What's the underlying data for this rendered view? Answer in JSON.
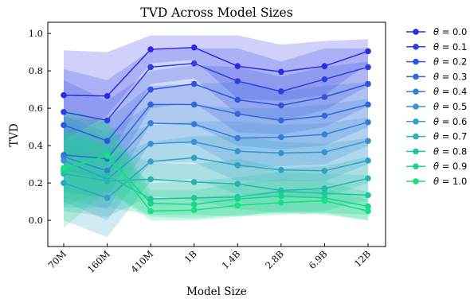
{
  "chart_data": {
    "type": "line",
    "title": "TVD Across Model Sizes",
    "xlabel": "Model Size",
    "ylabel": "TVD",
    "categories": [
      "70M",
      "160M",
      "410M",
      "1B",
      "1.4B",
      "2.8B",
      "6.9B",
      "12B"
    ],
    "ylim": [
      -0.14,
      1.06
    ],
    "yticks": [
      0.0,
      0.2,
      0.4,
      0.6,
      0.8,
      1.0
    ],
    "ytick_labels": [
      "0.0",
      "0.2",
      "0.4",
      "0.6",
      "0.8",
      "1.0"
    ],
    "grid": false,
    "legend_position": "outside-right",
    "band_opacity": 0.22,
    "series": [
      {
        "name": "θ = 0.0",
        "legend_var": "θ",
        "legend_val": "0.0",
        "color": "#2b2be6",
        "values": [
          0.67,
          0.665,
          0.915,
          0.925,
          0.825,
          0.795,
          0.825,
          0.905
        ],
        "lower": [
          0.43,
          0.56,
          0.84,
          0.86,
          0.65,
          0.64,
          0.67,
          0.84
        ],
        "upper": [
          0.91,
          0.9,
          0.99,
          0.99,
          0.99,
          0.94,
          0.96,
          0.97
        ]
      },
      {
        "name": "θ = 0.1",
        "legend_var": "θ",
        "legend_val": "0.1",
        "color": "#2d3fe3",
        "values": [
          0.58,
          0.535,
          0.82,
          0.84,
          0.745,
          0.69,
          0.755,
          0.82
        ],
        "lower": [
          0.35,
          0.32,
          0.73,
          0.76,
          0.57,
          0.53,
          0.59,
          0.72
        ],
        "upper": [
          0.81,
          0.75,
          0.91,
          0.92,
          0.92,
          0.85,
          0.92,
          0.92
        ]
      },
      {
        "name": "θ = 0.2",
        "legend_var": "θ",
        "legend_val": "0.2",
        "color": "#2f54e0",
        "values": [
          0.51,
          0.425,
          0.7,
          0.73,
          0.645,
          0.615,
          0.66,
          0.73
        ],
        "lower": [
          0.27,
          0.21,
          0.6,
          0.63,
          0.47,
          0.46,
          0.5,
          0.61
        ],
        "upper": [
          0.75,
          0.64,
          0.8,
          0.83,
          0.82,
          0.77,
          0.82,
          0.85
        ]
      },
      {
        "name": "θ = 0.3",
        "legend_var": "θ",
        "legend_val": "0.3",
        "color": "#3169dd",
        "values": [
          0.35,
          0.33,
          0.62,
          0.62,
          0.57,
          0.535,
          0.56,
          0.62
        ],
        "lower": [
          0.15,
          0.12,
          0.52,
          0.51,
          0.4,
          0.38,
          0.4,
          0.5
        ],
        "upper": [
          0.55,
          0.54,
          0.72,
          0.73,
          0.74,
          0.69,
          0.72,
          0.74
        ]
      },
      {
        "name": "θ = 0.4",
        "legend_var": "θ",
        "legend_val": "0.4",
        "color": "#337ed9",
        "values": [
          0.34,
          0.265,
          0.52,
          0.515,
          0.44,
          0.445,
          0.46,
          0.525
        ],
        "lower": [
          0.12,
          0.06,
          0.42,
          0.41,
          0.28,
          0.29,
          0.3,
          0.4
        ],
        "upper": [
          0.56,
          0.47,
          0.62,
          0.62,
          0.6,
          0.6,
          0.62,
          0.65
        ]
      },
      {
        "name": "θ = 0.5",
        "legend_var": "θ",
        "legend_val": "0.5",
        "color": "#3593d5",
        "values": [
          0.32,
          0.22,
          0.41,
          0.42,
          0.37,
          0.36,
          0.365,
          0.425
        ],
        "lower": [
          0.1,
          0.0,
          0.31,
          0.31,
          0.21,
          0.21,
          0.21,
          0.3
        ],
        "upper": [
          0.54,
          0.44,
          0.51,
          0.53,
          0.53,
          0.51,
          0.52,
          0.55
        ]
      },
      {
        "name": "θ = 0.6",
        "legend_var": "θ",
        "legend_val": "0.6",
        "color": "#2ea3c4",
        "values": [
          0.2,
          0.12,
          0.315,
          0.335,
          0.295,
          0.27,
          0.265,
          0.32
        ],
        "lower": [
          0.0,
          -0.09,
          0.21,
          0.22,
          0.14,
          0.12,
          0.12,
          0.2
        ],
        "upper": [
          0.4,
          0.33,
          0.42,
          0.45,
          0.45,
          0.42,
          0.41,
          0.44
        ]
      },
      {
        "name": "θ = 0.7",
        "legend_var": "θ",
        "legend_val": "0.7",
        "color": "#27b4b2",
        "values": [
          0.25,
          0.21,
          0.22,
          0.205,
          0.195,
          0.16,
          0.17,
          0.225
        ],
        "lower": [
          0.05,
          0.02,
          0.13,
          0.11,
          0.06,
          0.04,
          0.05,
          0.11
        ],
        "upper": [
          0.45,
          0.4,
          0.31,
          0.3,
          0.33,
          0.28,
          0.29,
          0.34
        ]
      },
      {
        "name": "θ = 0.8",
        "legend_var": "θ",
        "legend_val": "0.8",
        "color": "#21c4a1",
        "values": [
          0.27,
          0.24,
          0.115,
          0.12,
          0.125,
          0.155,
          0.145,
          0.135
        ],
        "lower": [
          0.07,
          0.07,
          0.03,
          0.03,
          0.02,
          0.05,
          0.04,
          0.03
        ],
        "upper": [
          0.47,
          0.41,
          0.2,
          0.21,
          0.23,
          0.26,
          0.25,
          0.24
        ]
      },
      {
        "name": "θ = 0.9",
        "legend_var": "θ",
        "legend_val": "0.9",
        "color": "#1ad38f",
        "values": [
          0.265,
          0.35,
          0.09,
          0.085,
          0.115,
          0.13,
          0.12,
          0.075
        ],
        "lower": [
          0.08,
          0.16,
          0.02,
          0.01,
          0.03,
          0.04,
          0.03,
          0.0
        ],
        "upper": [
          0.45,
          0.54,
          0.16,
          0.16,
          0.2,
          0.22,
          0.21,
          0.15
        ]
      },
      {
        "name": "θ = 1.0",
        "legend_var": "θ",
        "legend_val": "1.0",
        "color": "#17e081",
        "values": [
          0.28,
          0.345,
          0.05,
          0.055,
          0.08,
          0.095,
          0.105,
          0.05
        ],
        "lower": [
          -0.04,
          0.16,
          0.0,
          0.0,
          0.02,
          0.03,
          0.04,
          0.0
        ],
        "upper": [
          0.6,
          0.53,
          0.12,
          0.12,
          0.14,
          0.16,
          0.17,
          0.11
        ]
      }
    ]
  }
}
